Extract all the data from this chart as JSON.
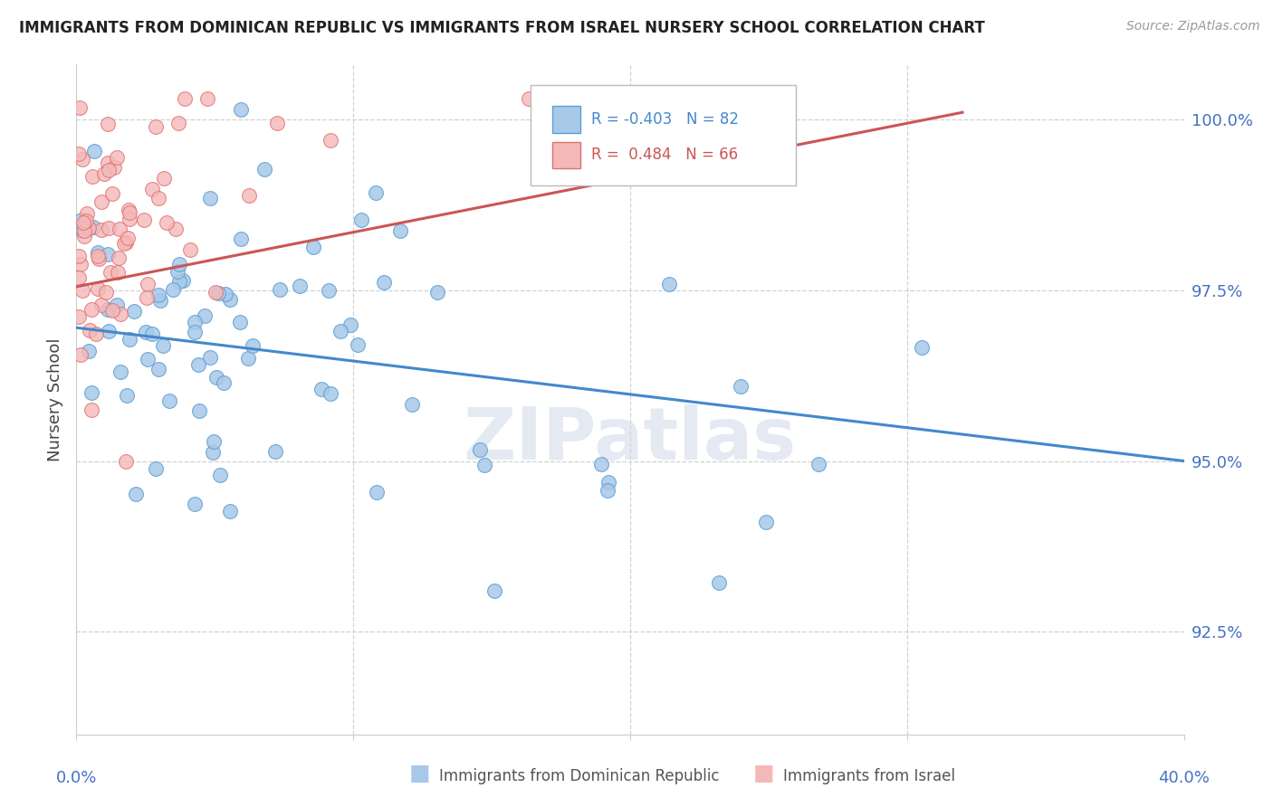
{
  "title": "IMMIGRANTS FROM DOMINICAN REPUBLIC VS IMMIGRANTS FROM ISRAEL NURSERY SCHOOL CORRELATION CHART",
  "source": "Source: ZipAtlas.com",
  "ylabel": "Nursery School",
  "ytick_labels": [
    "92.5%",
    "95.0%",
    "97.5%",
    "100.0%"
  ],
  "ytick_values": [
    0.925,
    0.95,
    0.975,
    1.0
  ],
  "xlim": [
    0.0,
    0.4
  ],
  "ylim": [
    0.91,
    1.008
  ],
  "blue_R": -0.403,
  "blue_N": 82,
  "pink_R": 0.484,
  "pink_N": 66,
  "blue_color": "#a8c8e8",
  "pink_color": "#f4b8b8",
  "blue_edge_color": "#5a9fd4",
  "pink_edge_color": "#e07070",
  "blue_line_color": "#4488cc",
  "pink_line_color": "#cc5555",
  "watermark": "ZIPatlas",
  "background_color": "#ffffff",
  "grid_color": "#cccccc",
  "title_color": "#222222",
  "tick_label_color": "#4472c4",
  "ylabel_color": "#444444",
  "legend_text_color_blue": "#4488cc",
  "legend_text_color_pink": "#cc5555"
}
